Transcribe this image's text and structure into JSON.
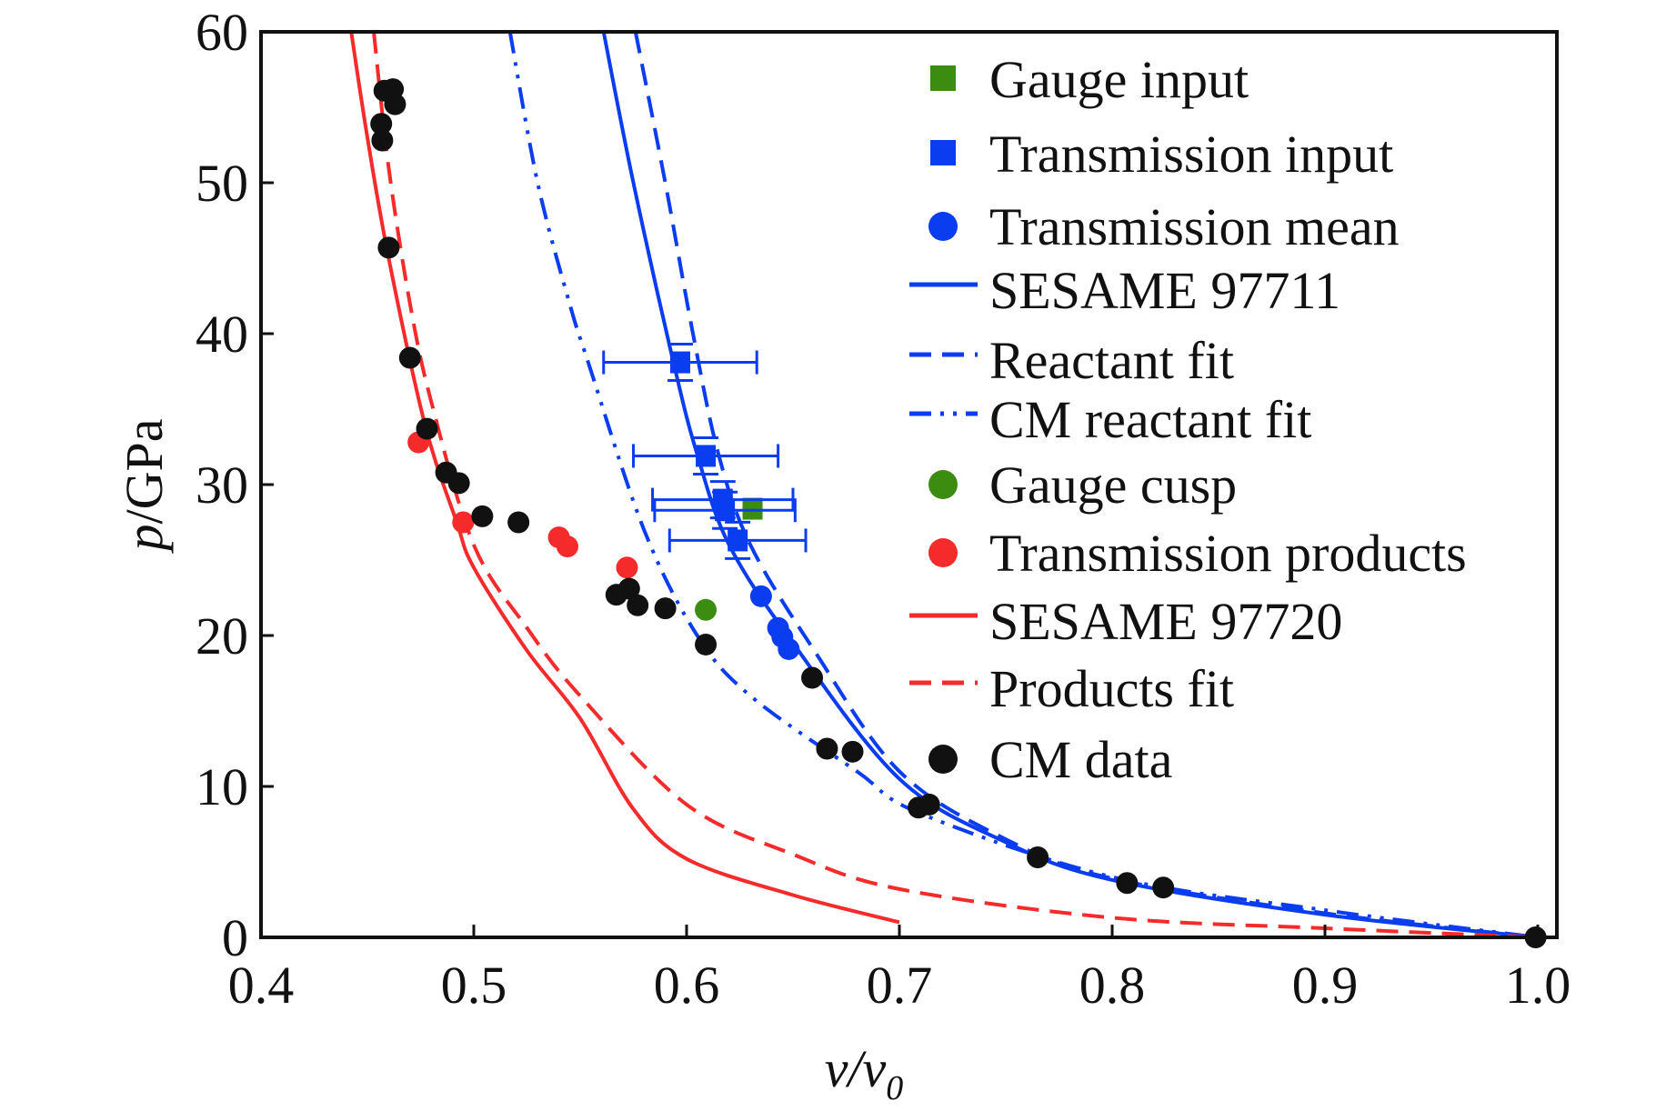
{
  "chart_data": {
    "type": "scatter",
    "xlabel": "v/v0",
    "xlabel_parts": {
      "main": "v/v",
      "sub": "0"
    },
    "ylabel": "p/GPa",
    "ylabel_parts": {
      "italic": "p",
      "rest": "/GPa"
    },
    "xlim": [
      0.4,
      1.0
    ],
    "ylim": [
      0,
      60
    ],
    "xticks": [
      "0.4",
      "0.5",
      "0.6",
      "0.7",
      "0.8",
      "0.9",
      "1.0"
    ],
    "yticks": [
      "0",
      "10",
      "20",
      "30",
      "40",
      "50",
      "60"
    ],
    "grid": false,
    "legend_placement": "top-right",
    "colors": {
      "blue": "#0a3cf0",
      "red": "#f52a2a",
      "green": "#3d8c12",
      "black": "#111111"
    },
    "series": [
      {
        "name": "Gauge input",
        "kind": "marker",
        "marker": "square",
        "color": "#3d8c12",
        "points": [
          [
            0.631,
            28.4
          ]
        ]
      },
      {
        "name": "Transmission input",
        "kind": "marker",
        "marker": "square",
        "color": "#0a3cf0",
        "points": [
          [
            0.597,
            38.1,
            0.036
          ],
          [
            0.609,
            31.9,
            0.034
          ],
          [
            0.617,
            29.0,
            0.033
          ],
          [
            0.618,
            28.3,
            0.033
          ],
          [
            0.624,
            26.3,
            0.032
          ]
        ]
      },
      {
        "name": "Transmission mean",
        "kind": "marker",
        "marker": "circle",
        "color": "#0a3cf0",
        "points": [
          [
            0.635,
            22.6
          ],
          [
            0.643,
            20.5
          ],
          [
            0.645,
            19.9
          ],
          [
            0.648,
            19.1
          ]
        ]
      },
      {
        "name": "SESAME 97711",
        "kind": "line",
        "dash": "solid",
        "color": "#0a3cf0",
        "points": [
          [
            0.561,
            60
          ],
          [
            0.575,
            50
          ],
          [
            0.594,
            38
          ],
          [
            0.605,
            32
          ],
          [
            0.62,
            26
          ],
          [
            0.65,
            19.5
          ],
          [
            0.7,
            10.5
          ],
          [
            0.75,
            6.3
          ],
          [
            0.8,
            3.8
          ],
          [
            0.9,
            1.5
          ],
          [
            1.0,
            0
          ]
        ]
      },
      {
        "name": "Reactant fit",
        "kind": "line",
        "dash": "dashed",
        "color": "#0a3cf0",
        "points": [
          [
            0.576,
            60
          ],
          [
            0.59,
            50
          ],
          [
            0.603,
            40
          ],
          [
            0.615,
            32
          ],
          [
            0.63,
            26
          ],
          [
            0.66,
            19
          ],
          [
            0.7,
            11
          ],
          [
            0.75,
            6.5
          ],
          [
            0.8,
            3.9
          ],
          [
            0.9,
            1.6
          ],
          [
            1.0,
            0
          ]
        ]
      },
      {
        "name": "CM reactant fit",
        "kind": "line",
        "dash": "dashdot",
        "color": "#0a3cf0",
        "points": [
          [
            0.517,
            60
          ],
          [
            0.53,
            50
          ],
          [
            0.545,
            42
          ],
          [
            0.554,
            38
          ],
          [
            0.58,
            27
          ],
          [
            0.605,
            20
          ],
          [
            0.63,
            16
          ],
          [
            0.68,
            11
          ],
          [
            0.71,
            8.2
          ],
          [
            0.8,
            4
          ],
          [
            0.9,
            1.8
          ],
          [
            1.0,
            0
          ]
        ]
      },
      {
        "name": "Gauge cusp",
        "kind": "marker",
        "marker": "circle",
        "color": "#3d8c12",
        "points": [
          [
            0.609,
            21.7
          ]
        ]
      },
      {
        "name": "Transmission products",
        "kind": "marker",
        "marker": "circle",
        "color": "#f52a2a",
        "points": [
          [
            0.474,
            32.8
          ],
          [
            0.495,
            27.5
          ],
          [
            0.54,
            26.5
          ],
          [
            0.544,
            25.9
          ],
          [
            0.572,
            24.5
          ]
        ]
      },
      {
        "name": "SESAME 97720",
        "kind": "line",
        "dash": "solid",
        "color": "#f52a2a",
        "points": [
          [
            0.4424,
            60
          ],
          [
            0.45,
            53
          ],
          [
            0.46,
            45
          ],
          [
            0.477,
            34
          ],
          [
            0.492,
            27.5
          ],
          [
            0.5,
            24.5
          ],
          [
            0.525,
            19
          ],
          [
            0.55,
            14.5
          ],
          [
            0.575,
            8.5
          ],
          [
            0.6,
            5.2
          ],
          [
            0.65,
            2.8
          ],
          [
            0.7,
            1.0
          ]
        ]
      },
      {
        "name": "Products fit",
        "kind": "line",
        "dash": "dashed",
        "color": "#f52a2a",
        "points": [
          [
            0.453,
            60
          ],
          [
            0.46,
            51
          ],
          [
            0.47,
            42
          ],
          [
            0.48,
            35.5
          ],
          [
            0.5,
            26
          ],
          [
            0.525,
            20.5
          ],
          [
            0.55,
            16
          ],
          [
            0.6,
            8.8
          ],
          [
            0.65,
            5.5
          ],
          [
            0.7,
            3.2
          ],
          [
            0.8,
            1.3
          ],
          [
            0.9,
            0.6
          ],
          [
            1.0,
            0
          ]
        ]
      },
      {
        "name": "CM data",
        "kind": "marker",
        "marker": "circle",
        "color": "#111111",
        "points": [
          [
            0.458,
            56.1
          ],
          [
            0.462,
            56.2
          ],
          [
            0.463,
            55.2
          ],
          [
            0.4565,
            53.9
          ],
          [
            0.457,
            52.8
          ],
          [
            0.46,
            45.7
          ],
          [
            0.47,
            38.4
          ],
          [
            0.478,
            33.7
          ],
          [
            0.487,
            30.8
          ],
          [
            0.493,
            30.1
          ],
          [
            0.504,
            27.9
          ],
          [
            0.521,
            27.5
          ],
          [
            0.567,
            22.7
          ],
          [
            0.573,
            23.1
          ],
          [
            0.577,
            22.0
          ],
          [
            0.59,
            21.8
          ],
          [
            0.609,
            19.4
          ],
          [
            0.659,
            17.2
          ],
          [
            0.666,
            12.5
          ],
          [
            0.678,
            12.3
          ],
          [
            0.709,
            8.6
          ],
          [
            0.714,
            8.8
          ],
          [
            0.765,
            5.3
          ],
          [
            0.807,
            3.6
          ],
          [
            0.824,
            3.3
          ],
          [
            0.999,
            0
          ]
        ]
      }
    ]
  }
}
